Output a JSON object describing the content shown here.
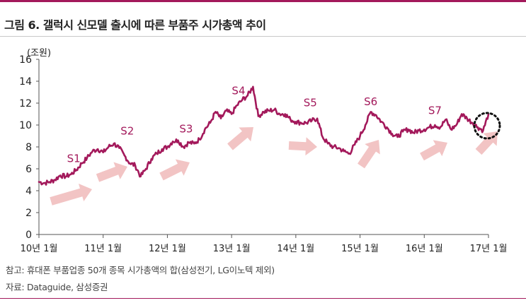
{
  "title": "그림 6. 갤럭시 신모델 출시에 따른 부품주 시가총액 추이",
  "note": "참고: 휴대폰 부품업종 50개 종목 시가총액의 합(삼성전기, LG이노텍 제외)",
  "source": "자료: Dataguide, 삼성증권",
  "colors": {
    "line": "#a3195b",
    "arrow": "#f2c4c4",
    "accent": "#a3195b"
  },
  "chart_data": {
    "type": "line",
    "ylabel": "(조원)",
    "ylim": [
      0,
      16
    ],
    "yticks": [
      0,
      2,
      4,
      6,
      8,
      10,
      12,
      14,
      16
    ],
    "xlim": [
      0,
      84
    ],
    "xticks": [
      {
        "x": 0,
        "label": "10년 1월"
      },
      {
        "x": 12,
        "label": "11년 1월"
      },
      {
        "x": 24,
        "label": "12년 1월"
      },
      {
        "x": 36,
        "label": "13년 1월"
      },
      {
        "x": 48,
        "label": "14년 1월"
      },
      {
        "x": 60,
        "label": "15년 1월"
      },
      {
        "x": 72,
        "label": "16년 1월"
      },
      {
        "x": 84,
        "label": "17년 1월"
      }
    ],
    "series": [
      {
        "x": [
          0,
          1,
          2,
          3,
          4,
          5,
          6,
          7,
          8,
          9,
          10,
          11,
          12,
          13,
          14,
          15,
          16,
          17,
          18,
          19,
          20,
          21,
          22,
          23,
          24,
          25,
          26,
          27,
          28,
          29,
          30,
          31,
          32,
          33,
          34,
          35,
          36,
          37,
          38,
          39,
          40,
          41,
          42,
          43,
          44,
          45,
          46,
          47,
          48,
          49,
          50,
          51,
          52,
          53,
          54,
          55,
          56,
          57,
          58,
          59,
          60,
          61,
          62,
          63,
          64,
          65,
          66,
          67,
          68,
          69,
          70,
          71,
          72,
          73,
          74,
          75,
          76,
          77,
          78,
          79,
          80,
          81,
          82,
          83,
          84
        ],
        "values": [
          4.8,
          4.7,
          4.8,
          5.0,
          5.4,
          5.3,
          5.5,
          5.9,
          6.5,
          7.0,
          7.6,
          7.8,
          7.5,
          8.0,
          8.3,
          7.9,
          7.2,
          6.5,
          6.3,
          5.3,
          6.0,
          6.9,
          7.4,
          7.8,
          8.0,
          8.5,
          8.6,
          8.0,
          8.4,
          8.3,
          8.7,
          9.6,
          10.2,
          11.2,
          10.6,
          11.3,
          11.0,
          11.8,
          12.3,
          12.7,
          13.5,
          10.8,
          11.2,
          11.3,
          11.4,
          11.0,
          11.0,
          10.5,
          10.3,
          10.2,
          10.2,
          10.4,
          10.6,
          8.9,
          8.3,
          8.0,
          7.9,
          7.6,
          7.4,
          8.2,
          9.0,
          10.0,
          11.2,
          10.9,
          10.3,
          9.8,
          9.2,
          8.9,
          9.4,
          9.6,
          9.3,
          9.5,
          9.6,
          9.8,
          10.0,
          9.8,
          10.5,
          9.6,
          10.0,
          11.0,
          10.6,
          10.2,
          9.8,
          9.5,
          11.0
        ]
      }
    ],
    "annotations": [
      "S1",
      "S2",
      "S3",
      "S4",
      "S5",
      "S6",
      "S7"
    ]
  }
}
